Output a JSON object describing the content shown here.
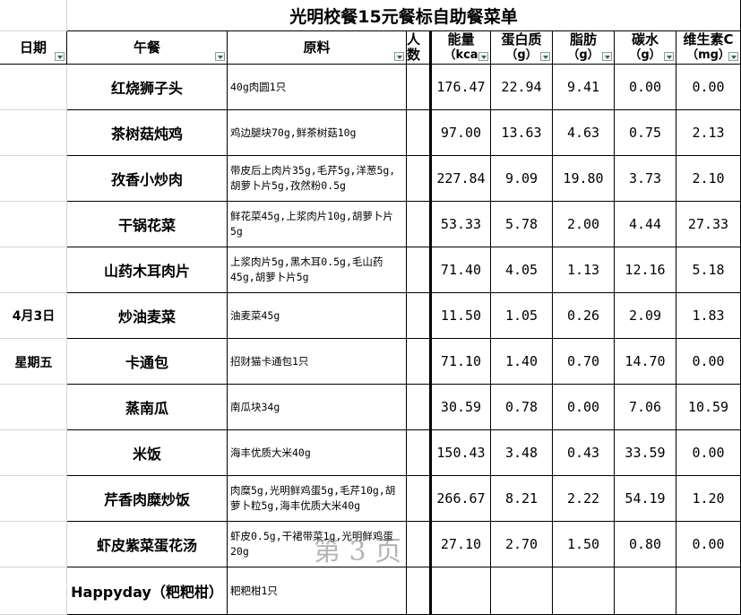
{
  "title": "光明校餐15元餐标自助餐菜单",
  "headers": [
    {
      "label": "日期"
    },
    {
      "label": "午餐"
    },
    {
      "label": "原料"
    },
    {
      "label": "人数"
    },
    {
      "label": "能量",
      "unit": "（kca"
    },
    {
      "label": "蛋白质",
      "unit": "（g）"
    },
    {
      "label": "脂肪",
      "unit": "（g）"
    },
    {
      "label": "碳水",
      "unit": "（g）"
    },
    {
      "label": "维生素C",
      "unit": "（mg）"
    }
  ],
  "date": "4月3日",
  "weekday": "星期五",
  "rows": [
    {
      "dish": "红烧狮子头",
      "ingredients": "40g肉圆1只",
      "values": [
        "176.47",
        "22.94",
        "9.41",
        "0.00",
        "0.00"
      ]
    },
    {
      "dish": "茶树菇炖鸡",
      "ingredients": "鸡边腿块70g,鲜茶树菇10g",
      "values": [
        "97.00",
        "13.63",
        "4.63",
        "0.75",
        "2.13"
      ]
    },
    {
      "dish": "孜香小炒肉",
      "ingredients": "带皮后上肉片35g,毛芹5g,洋葱5g,胡萝卜片5g,孜然粉0.5g",
      "values": [
        "227.84",
        "9.09",
        "19.80",
        "3.73",
        "2.10"
      ]
    },
    {
      "dish": "干锅花菜",
      "ingredients": "鲜花菜45g,上浆肉片10g,胡萝卜片5g",
      "values": [
        "53.33",
        "5.78",
        "2.00",
        "4.44",
        "27.33"
      ]
    },
    {
      "dish": "山药木耳肉片",
      "ingredients": "上浆肉片5g,黑木耳0.5g,毛山药45g,胡萝卜片5g",
      "values": [
        "71.40",
        "4.05",
        "1.13",
        "12.16",
        "5.18"
      ]
    },
    {
      "dish": "炒油麦菜",
      "ingredients": "油麦菜45g",
      "values": [
        "11.50",
        "1.05",
        "0.26",
        "2.09",
        "1.83"
      ]
    },
    {
      "dish": "卡通包",
      "ingredients": "招财猫卡通包1只",
      "values": [
        "71.10",
        "1.40",
        "0.70",
        "14.70",
        "0.00"
      ]
    },
    {
      "dish": "蒸南瓜",
      "ingredients": "南瓜块34g",
      "values": [
        "30.59",
        "0.78",
        "0.00",
        "7.06",
        "10.59"
      ]
    },
    {
      "dish": "米饭",
      "ingredients": "海丰优质大米40g",
      "values": [
        "150.43",
        "3.48",
        "0.43",
        "33.59",
        "0.00"
      ]
    },
    {
      "dish": "芹香肉糜炒饭",
      "ingredients": "肉糜5g,光明鲜鸡蛋5g,毛芹10g,胡萝卜粒5g,海丰优质大米40g",
      "values": [
        "266.67",
        "8.21",
        "2.22",
        "54.19",
        "1.20"
      ]
    },
    {
      "dish": "虾皮紫菜蛋花汤",
      "ingredients": "虾皮0.5g,干裙带菜1g,光明鲜鸡蛋20g",
      "values": [
        "27.10",
        "2.70",
        "1.50",
        "0.80",
        "0.00"
      ]
    },
    {
      "dish": "Happyday（粑粑柑）",
      "ingredients": "粑粑柑1只"
    }
  ],
  "watermark": "第 3 页"
}
